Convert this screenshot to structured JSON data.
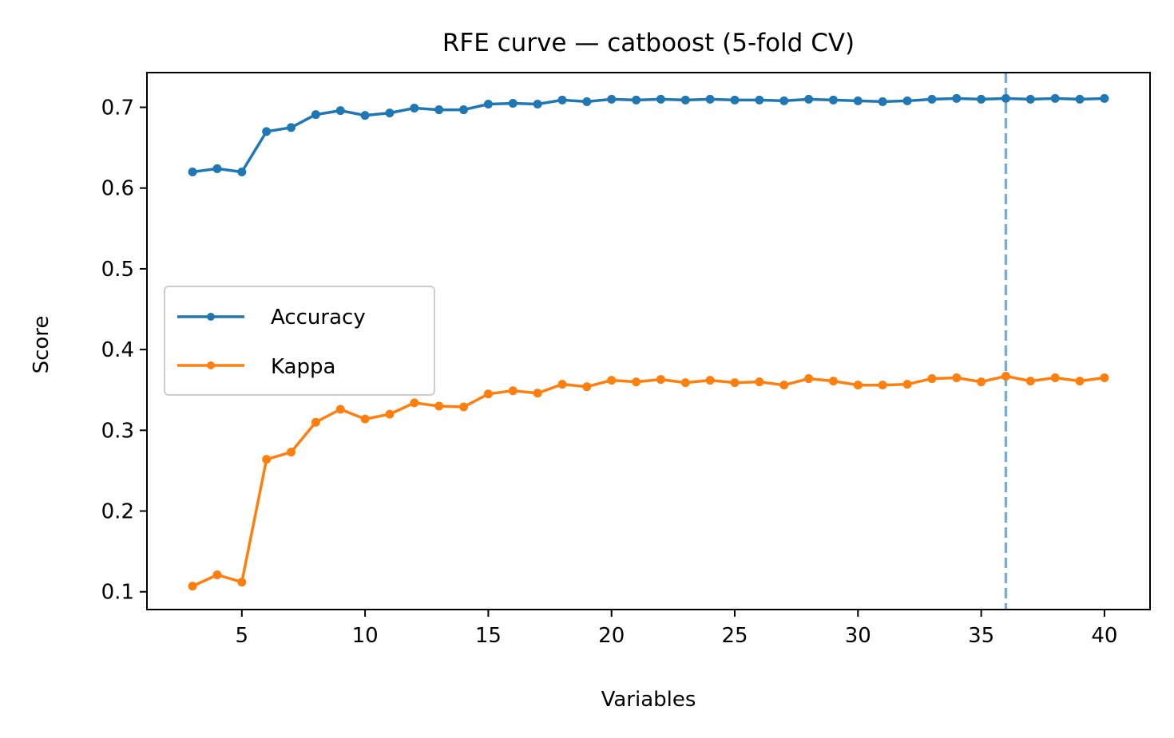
{
  "chart_data": {
    "type": "line",
    "title": "RFE curve — catboost (5-fold CV)",
    "xlabel": "Variables",
    "ylabel": "Score",
    "xlim": [
      1.15,
      41.85
    ],
    "ylim": [
      0.078,
      0.743
    ],
    "xticks": [
      5,
      10,
      15,
      20,
      25,
      30,
      35,
      40
    ],
    "xtick_labels": [
      "5",
      "10",
      "15",
      "20",
      "25",
      "30",
      "35",
      "40"
    ],
    "yticks": [
      0.1,
      0.2,
      0.3,
      0.4,
      0.5,
      0.6,
      0.7
    ],
    "ytick_labels": [
      "0.1",
      "0.2",
      "0.3",
      "0.4",
      "0.5",
      "0.6",
      "0.7"
    ],
    "grid": false,
    "legend_position": "center-left",
    "x": [
      3,
      4,
      5,
      6,
      7,
      8,
      9,
      10,
      11,
      12,
      13,
      14,
      15,
      16,
      17,
      18,
      19,
      20,
      21,
      22,
      23,
      24,
      25,
      26,
      27,
      28,
      29,
      30,
      31,
      32,
      33,
      34,
      35,
      36,
      37,
      38,
      39,
      40
    ],
    "series": [
      {
        "name": "Accuracy",
        "color": "#1f77b4",
        "values": [
          0.62,
          0.624,
          0.62,
          0.67,
          0.675,
          0.691,
          0.696,
          0.69,
          0.693,
          0.699,
          0.697,
          0.697,
          0.704,
          0.705,
          0.704,
          0.709,
          0.707,
          0.71,
          0.709,
          0.71,
          0.709,
          0.71,
          0.709,
          0.709,
          0.708,
          0.71,
          0.709,
          0.708,
          0.707,
          0.708,
          0.71,
          0.711,
          0.71,
          0.711,
          0.71,
          0.711,
          0.71,
          0.711
        ]
      },
      {
        "name": "Kappa",
        "color": "#ff7f0e",
        "values": [
          0.107,
          0.121,
          0.112,
          0.264,
          0.273,
          0.31,
          0.326,
          0.314,
          0.32,
          0.334,
          0.33,
          0.329,
          0.345,
          0.349,
          0.346,
          0.357,
          0.354,
          0.362,
          0.36,
          0.363,
          0.359,
          0.362,
          0.359,
          0.36,
          0.356,
          0.364,
          0.361,
          0.356,
          0.356,
          0.357,
          0.364,
          0.365,
          0.36,
          0.367,
          0.361,
          0.365,
          0.361,
          0.365
        ]
      }
    ],
    "vline": {
      "x": 36,
      "color": "#1f77b4",
      "style": "dashed"
    }
  }
}
